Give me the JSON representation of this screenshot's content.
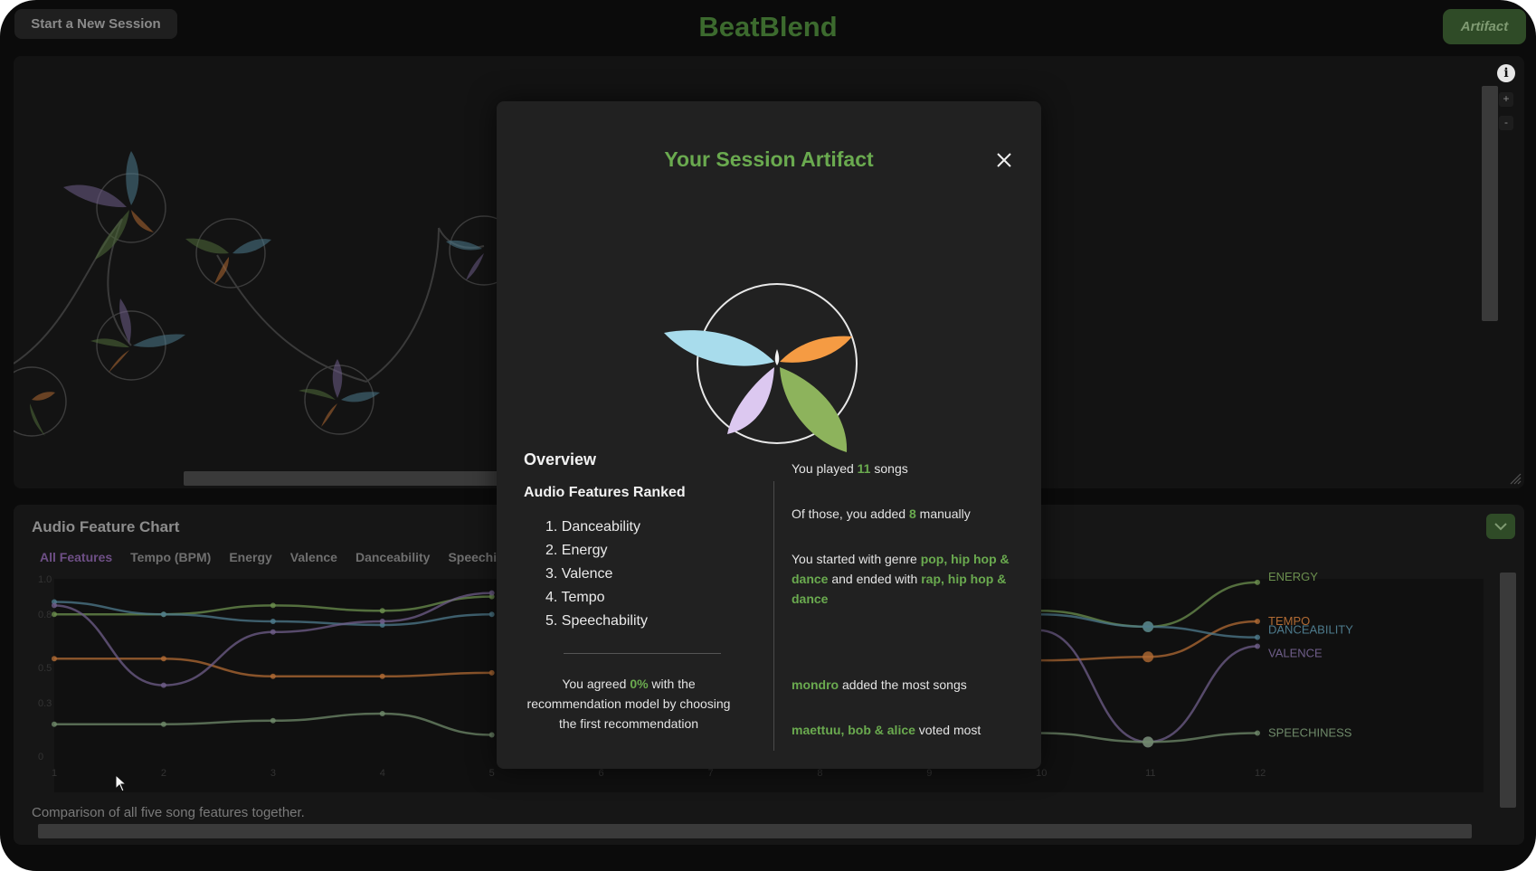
{
  "header": {
    "new_session_label": "Start a New Session",
    "app_title": "BeatBlend",
    "artifact_label": "Artifact"
  },
  "viz_panel": {
    "info_glyph": "i",
    "zoom_in": "+",
    "zoom_out": "-"
  },
  "chart_panel": {
    "title": "Audio Feature Chart",
    "tabs": [
      "All Features",
      "Tempo (BPM)",
      "Energy",
      "Valence",
      "Danceability",
      "Speechi"
    ],
    "caption": "Comparison of all five song features together."
  },
  "chart_data": {
    "type": "line",
    "x": [
      1,
      2,
      3,
      4,
      5,
      6,
      7,
      8,
      9,
      10,
      11,
      12
    ],
    "y_ticks": [
      "1.0",
      "0.8",
      "0.5",
      "0.3",
      "0"
    ],
    "ylim": [
      0,
      1
    ],
    "series": [
      {
        "name": "ENERGY",
        "color": "#6b8f4e",
        "values": [
          0.8,
          0.8,
          0.85,
          0.82,
          0.9,
          null,
          null,
          null,
          null,
          0.82,
          0.73,
          0.98
        ]
      },
      {
        "name": "TEMPO",
        "color": "#b06a33",
        "values": [
          0.55,
          0.55,
          0.45,
          0.45,
          0.47,
          null,
          null,
          null,
          null,
          0.54,
          0.56,
          0.76
        ]
      },
      {
        "name": "DANCEABILITY",
        "color": "#4d7a8c",
        "values": [
          0.87,
          0.8,
          0.76,
          0.74,
          0.8,
          null,
          null,
          null,
          null,
          0.8,
          0.73,
          0.67
        ]
      },
      {
        "name": "VALENCE",
        "color": "#6f5e8a",
        "values": [
          0.85,
          0.4,
          0.7,
          0.76,
          0.92,
          null,
          null,
          null,
          null,
          0.71,
          0.08,
          0.62
        ]
      },
      {
        "name": "SPEECHINESS",
        "color": "#6f8a6a",
        "values": [
          0.18,
          0.18,
          0.2,
          0.24,
          0.12,
          null,
          null,
          null,
          null,
          0.13,
          0.08,
          0.13
        ]
      }
    ]
  },
  "modal": {
    "title": "Your Session Artifact",
    "overview_label": "Overview",
    "ranked_heading": "Audio Features Ranked",
    "ranked_features": [
      "1. Danceability",
      "2. Energy",
      "3. Valence",
      "4. Tempo",
      "5. Speechability"
    ],
    "agree_pre": "You agreed ",
    "agree_value": "0%",
    "agree_post": " with the recommendation model by choosing the first recommendation",
    "played_pre": "You played ",
    "played_count": "11",
    "played_post": " songs",
    "added_pre": "Of those, you added ",
    "added_count": "8",
    "added_post": " manually",
    "genre_pre": "You started with genre ",
    "genre_start": "pop, hip hop & dance",
    "genre_mid": " and ended with ",
    "genre_end": "rap, hip hop & dance",
    "top_adder": "mondro",
    "top_adder_post": " added the most songs",
    "top_voters": "maettuu, bob & alice",
    "top_voters_post": " voted most"
  },
  "colors": {
    "accent_green": "#6aaa4f",
    "petal_blue": "#a8dcec",
    "petal_orange": "#f59b43",
    "petal_lilac": "#dcc8f0",
    "petal_green": "#8db35c"
  }
}
